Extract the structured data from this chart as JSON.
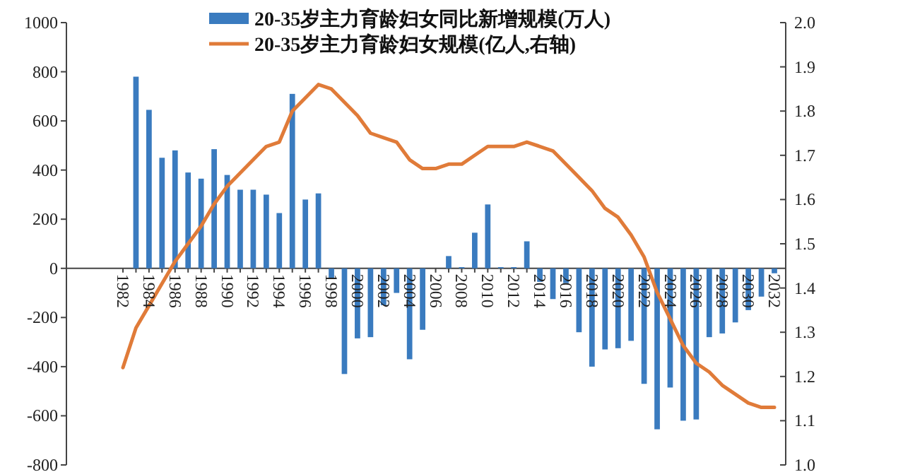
{
  "chart_data": {
    "type": "bar",
    "categories": [
      "1982",
      null,
      "1984",
      null,
      "1986",
      null,
      "1988",
      null,
      "1990",
      null,
      "1992",
      null,
      "1994",
      null,
      "1996",
      null,
      "1998",
      null,
      "2000",
      null,
      "2002",
      null,
      "2004",
      null,
      "2006",
      null,
      "2008",
      null,
      "2010",
      null,
      "2012",
      null,
      "2014",
      null,
      "2016",
      null,
      "2018",
      null,
      "2020",
      null,
      "2022",
      null,
      "2024",
      null,
      "2026",
      null,
      "2028",
      null,
      "2030",
      null,
      "2032"
    ],
    "series": [
      {
        "name": "20-35岁主力育龄妇女同比新增规模(万人)",
        "type": "bar",
        "color": "#3a7bbf",
        "values": [
          0,
          780,
          645,
          450,
          480,
          390,
          365,
          485,
          380,
          320,
          320,
          300,
          225,
          710,
          280,
          305,
          -40,
          -430,
          -285,
          -280,
          -150,
          -100,
          -370,
          -250,
          0,
          50,
          5,
          145,
          260,
          5,
          5,
          110,
          -55,
          -125,
          -60,
          -260,
          -400,
          -330,
          -325,
          -295,
          -470,
          -655,
          -485,
          -620,
          -615,
          -280,
          -265,
          -220,
          -170,
          -115,
          -20
        ]
      },
      {
        "name": "20-35岁主力育龄妇女规模(亿人,右轴)",
        "type": "line",
        "axis": "y2",
        "color": "#e07b39",
        "values": [
          1.22,
          1.31,
          1.36,
          1.41,
          1.46,
          1.5,
          1.54,
          1.59,
          1.63,
          1.66,
          1.69,
          1.72,
          1.73,
          1.8,
          1.83,
          1.86,
          1.85,
          1.82,
          1.79,
          1.75,
          1.74,
          1.73,
          1.69,
          1.67,
          1.67,
          1.68,
          1.68,
          1.7,
          1.72,
          1.72,
          1.72,
          1.73,
          1.72,
          1.71,
          1.68,
          1.65,
          1.62,
          1.58,
          1.56,
          1.52,
          1.47,
          1.39,
          1.33,
          1.27,
          1.23,
          1.21,
          1.18,
          1.16,
          1.14,
          1.13,
          1.13
        ]
      }
    ],
    "ylim": [
      -800,
      1000
    ],
    "yticks": [
      -800,
      -600,
      -400,
      -200,
      0,
      200,
      400,
      600,
      800,
      1000
    ],
    "y2lim": [
      1.0,
      2.0
    ],
    "y2ticks": [
      {
        "value": 1.0,
        "label": "1.0"
      },
      1.1,
      1.2,
      1.3,
      1.4,
      1.5,
      1.6,
      1.7,
      1.8,
      1.9,
      {
        "value": 2.0,
        "label": "2.0"
      }
    ],
    "legend": "top"
  }
}
